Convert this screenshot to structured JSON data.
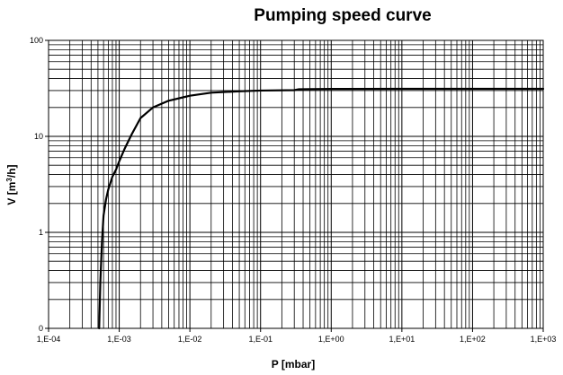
{
  "chart_data": {
    "type": "line",
    "title": "Pumping speed curve",
    "xlabel": "P [mbar]",
    "ylabel_main": "V [m",
    "ylabel_sup": "3",
    "ylabel_tail": "/h]",
    "xscale": "log",
    "yscale": "log",
    "xlim": [
      0.0001,
      1000
    ],
    "ylim": [
      0.1,
      100
    ],
    "x_ticks": [
      0.0001,
      0.001,
      0.01,
      0.1,
      1,
      10,
      100,
      1000
    ],
    "x_tick_labels": [
      "1,E-04",
      "1,E-03",
      "1,E-02",
      "1,E-01",
      "1,E+00",
      "1,E+01",
      "1,E+02",
      "1,E+03"
    ],
    "y_ticks": [
      0.1,
      1,
      10,
      100
    ],
    "y_tick_labels": [
      "0",
      "1",
      "10",
      "100"
    ],
    "grid": true,
    "legend": "none",
    "series": [
      {
        "name": "Pumping speed",
        "x": [
          0.00052,
          0.00054,
          0.00057,
          0.0006,
          0.00065,
          0.0007,
          0.0008,
          0.0009,
          0.001,
          0.0012,
          0.0015,
          0.002,
          0.003,
          0.005,
          0.008,
          0.01,
          0.02,
          0.05,
          0.1,
          0.3,
          0.35,
          1,
          10,
          100,
          1000
        ],
        "y": [
          0.1,
          0.3,
          0.8,
          1.5,
          2.2,
          2.8,
          3.8,
          4.5,
          5.5,
          7.5,
          10.5,
          15.5,
          20,
          23.5,
          25.5,
          26.5,
          28.5,
          29.5,
          30,
          30.3,
          31,
          31.2,
          31.3,
          31.3,
          31.3
        ]
      }
    ]
  }
}
